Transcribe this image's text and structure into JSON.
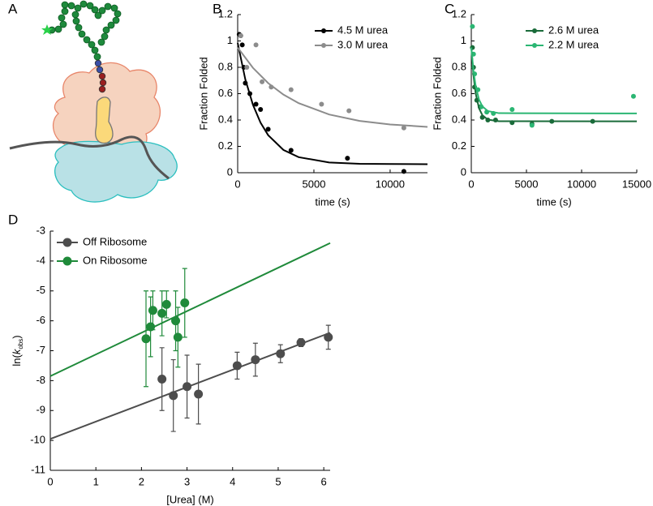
{
  "diagram": {
    "label": "A"
  },
  "chart_data": [
    {
      "type": "scatter",
      "label": "B",
      "xlabel": "time (s)",
      "ylabel": "Fraction Folded",
      "xlim": [
        0,
        12450
      ],
      "ylim": [
        0,
        1.2
      ],
      "xticks": [
        0,
        5000,
        10000
      ],
      "yticks": [
        0,
        0.2,
        0.4,
        0.6,
        0.8,
        1,
        1.2
      ],
      "legend": "upper right",
      "series": [
        {
          "name": "4.5 M urea",
          "color": "#000000",
          "mode": "markers",
          "x": [
            100,
            200,
            300,
            400,
            500,
            800,
            1200,
            1500,
            2000,
            3500,
            7200,
            10900
          ],
          "values": [
            1.05,
            1.04,
            0.97,
            0.8,
            0.68,
            0.6,
            0.52,
            0.48,
            0.33,
            0.17,
            0.11,
            0.01
          ]
        },
        {
          "name": "3.0 M urea",
          "color": "#8c8c8c",
          "mode": "markers",
          "x": [
            200,
            600,
            1200,
            1600,
            2200,
            3500,
            5500,
            7300,
            10900
          ],
          "values": [
            1.04,
            0.8,
            0.97,
            0.69,
            0.65,
            0.63,
            0.52,
            0.47,
            0.34
          ]
        },
        {
          "color": "#000000",
          "mode": "line",
          "x": [
            0,
            500,
            1000,
            1500,
            2000,
            3000,
            4000,
            6000,
            8000,
            10000,
            12450
          ],
          "values": [
            0.985,
            0.709,
            0.516,
            0.38,
            0.285,
            0.173,
            0.118,
            0.078,
            0.068,
            0.066,
            0.065
          ]
        },
        {
          "color": "#8c8c8c",
          "mode": "line",
          "x": [
            0,
            1000,
            2000,
            3000,
            4000,
            6000,
            8000,
            10000,
            12450
          ],
          "values": [
            0.95,
            0.796,
            0.68,
            0.593,
            0.528,
            0.442,
            0.393,
            0.366,
            0.348
          ]
        }
      ]
    },
    {
      "type": "scatter",
      "label": "C",
      "xlabel": "time (s)",
      "ylabel": "Fraction Folded",
      "xlim": [
        0,
        15000
      ],
      "ylim": [
        0,
        1.2
      ],
      "xticks": [
        0,
        5000,
        10000,
        15000
      ],
      "yticks": [
        0,
        0.2,
        0.4,
        0.6,
        0.8,
        1,
        1.2
      ],
      "legend": "upper right",
      "series": [
        {
          "name": "2.6 M urea",
          "color": "#1a6b3a",
          "mode": "markers",
          "x": [
            100,
            200,
            300,
            500,
            800,
            1000,
            1500,
            2200,
            3700,
            5500,
            7300,
            11000
          ],
          "values": [
            0.95,
            0.8,
            0.65,
            0.55,
            0.5,
            0.42,
            0.4,
            0.4,
            0.38,
            0.37,
            0.39,
            0.39
          ]
        },
        {
          "name": "2.2 M urea",
          "color": "#2bb673",
          "mode": "markers",
          "x": [
            100,
            200,
            300,
            600,
            900,
            1400,
            2000,
            3700,
            5500,
            14700
          ],
          "values": [
            1.11,
            0.9,
            0.75,
            0.63,
            0.5,
            0.46,
            0.45,
            0.48,
            0.36,
            0.58
          ]
        },
        {
          "color": "#1a6b3a",
          "mode": "line",
          "x": [
            0,
            200,
            400,
            700,
            1000,
            1500,
            2500,
            15000
          ],
          "values": [
            0.96,
            0.736,
            0.6,
            0.489,
            0.437,
            0.403,
            0.391,
            0.39
          ]
        },
        {
          "color": "#2bb673",
          "mode": "line",
          "x": [
            0,
            200,
            400,
            700,
            1000,
            1500,
            2500,
            15000
          ],
          "values": [
            0.95,
            0.771,
            0.656,
            0.555,
            0.504,
            0.468,
            0.452,
            0.45
          ]
        }
      ]
    },
    {
      "type": "scatter",
      "label": "D",
      "xlabel": "[Urea] (M)",
      "ylabel": {
        "prefix": "ln(",
        "symbol": "k",
        "subscript": "obs",
        "suffix": ")"
      },
      "xlim": [
        0,
        6.14
      ],
      "ylim": [
        -11,
        -3
      ],
      "xticks": [
        0,
        1,
        2,
        3,
        4,
        5,
        6
      ],
      "yticks": [
        -11,
        -10,
        -9,
        -8,
        -7,
        -6,
        -5,
        -4,
        -3
      ],
      "legend": "upper left",
      "series": [
        {
          "name": "Off Ribosome",
          "color": "#4d4d4d",
          "mode": "markers",
          "x": [
            2.45,
            2.7,
            3.0,
            3.25,
            4.1,
            4.5,
            5.05,
            5.5,
            6.1
          ],
          "values": [
            -7.95,
            -8.5,
            -8.2,
            -8.45,
            -7.5,
            -7.3,
            -7.1,
            -6.73,
            -6.55
          ],
          "errors": [
            1.05,
            1.2,
            1.05,
            1.0,
            0.45,
            0.55,
            0.3,
            0.13,
            0.4
          ]
        },
        {
          "name": "On Ribosome",
          "color": "#1f8a3a",
          "mode": "markers",
          "x": [
            2.1,
            2.2,
            2.25,
            2.45,
            2.55,
            2.75,
            2.8,
            2.95
          ],
          "values": [
            -6.6,
            -6.2,
            -5.65,
            -5.75,
            -5.45,
            -6.0,
            -6.55,
            -5.4
          ],
          "errors": [
            1.6,
            1.0,
            0.65,
            0.75,
            0.45,
            1.0,
            1.0,
            1.15
          ]
        },
        {
          "color": "#4d4d4d",
          "mode": "line",
          "x": [
            0,
            6.14
          ],
          "values": [
            -9.95,
            -6.4
          ]
        },
        {
          "color": "#1f8a3a",
          "mode": "line",
          "x": [
            0,
            6.14
          ],
          "values": [
            -7.85,
            -3.4
          ]
        }
      ]
    }
  ]
}
